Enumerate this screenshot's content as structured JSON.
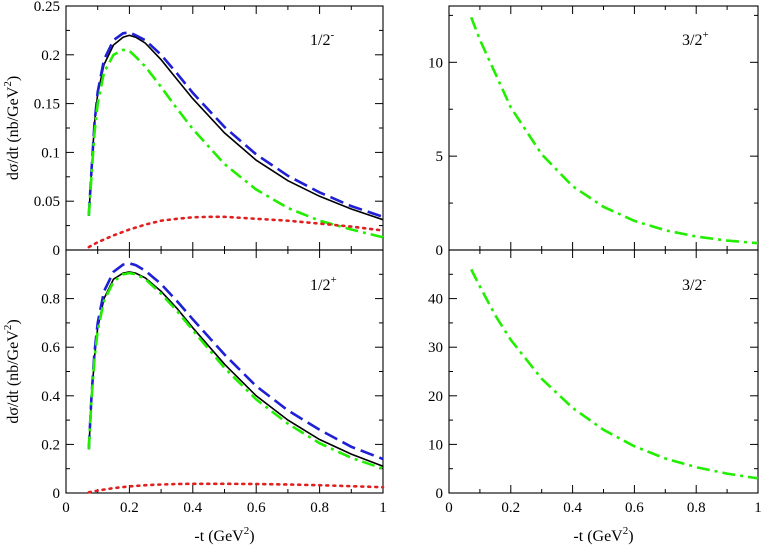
{
  "chart_data": [
    {
      "type": "line",
      "panel_label": "1/2",
      "panel_label_sup": "-",
      "ylabel": "dσ/dt (nb/GeV",
      "ylabel_sup": "2",
      "ylabel_tail": ")",
      "xlim": [
        0,
        1
      ],
      "ylim": [
        0,
        0.25
      ],
      "xticks": [
        0,
        0.2,
        0.4,
        0.6,
        0.8,
        1
      ],
      "xticklabels": [],
      "yticks": [
        0,
        0.05,
        0.1,
        0.15,
        0.2,
        0.25
      ],
      "yticklabels": [
        "0",
        "0.05",
        "0.1",
        "0.15",
        "0.2",
        "0.25"
      ],
      "series": [
        {
          "style": "solid",
          "color": "#000000",
          "x": [
            0.072,
            0.08,
            0.09,
            0.1,
            0.12,
            0.15,
            0.18,
            0.2,
            0.22,
            0.25,
            0.3,
            0.35,
            0.4,
            0.5,
            0.6,
            0.7,
            0.8,
            0.9,
            1.0
          ],
          "y": [
            0.035,
            0.08,
            0.13,
            0.16,
            0.19,
            0.21,
            0.218,
            0.22,
            0.218,
            0.212,
            0.195,
            0.175,
            0.155,
            0.12,
            0.092,
            0.071,
            0.055,
            0.042,
            0.031
          ]
        },
        {
          "style": "dashed",
          "color": "#1f1fd6",
          "x": [
            0.072,
            0.08,
            0.09,
            0.1,
            0.12,
            0.15,
            0.18,
            0.2,
            0.22,
            0.25,
            0.3,
            0.35,
            0.4,
            0.5,
            0.6,
            0.7,
            0.8,
            0.9,
            1.0
          ],
          "y": [
            0.035,
            0.08,
            0.13,
            0.162,
            0.195,
            0.215,
            0.222,
            0.223,
            0.22,
            0.215,
            0.2,
            0.181,
            0.161,
            0.126,
            0.098,
            0.076,
            0.059,
            0.045,
            0.034
          ]
        },
        {
          "style": "dashdot",
          "color": "#22ee00",
          "x": [
            0.072,
            0.08,
            0.09,
            0.1,
            0.12,
            0.15,
            0.18,
            0.2,
            0.22,
            0.25,
            0.3,
            0.35,
            0.4,
            0.5,
            0.6,
            0.7,
            0.8,
            0.9,
            1.0
          ],
          "y": [
            0.035,
            0.075,
            0.12,
            0.15,
            0.182,
            0.2,
            0.205,
            0.204,
            0.198,
            0.188,
            0.167,
            0.145,
            0.124,
            0.088,
            0.062,
            0.043,
            0.03,
            0.021,
            0.013
          ]
        },
        {
          "style": "dotted",
          "color": "#e02020",
          "x": [
            0.072,
            0.1,
            0.15,
            0.2,
            0.25,
            0.3,
            0.35,
            0.4,
            0.45,
            0.5,
            0.55,
            0.6,
            0.7,
            0.8,
            0.9,
            1.0
          ],
          "y": [
            0.003,
            0.008,
            0.015,
            0.021,
            0.026,
            0.03,
            0.032,
            0.0335,
            0.034,
            0.034,
            0.033,
            0.032,
            0.03,
            0.027,
            0.024,
            0.02
          ]
        }
      ]
    },
    {
      "type": "line",
      "panel_label": "3/2",
      "panel_label_sup": "+",
      "xlim": [
        0,
        1
      ],
      "ylim": [
        0,
        13
      ],
      "xticks": [
        0,
        0.2,
        0.4,
        0.6,
        0.8,
        1
      ],
      "xticklabels": [],
      "yticks": [
        0,
        5,
        10
      ],
      "yticklabels": [
        "0",
        "5",
        "10"
      ],
      "series": [
        {
          "style": "dashdot",
          "color": "#22ee00",
          "x": [
            0.072,
            0.1,
            0.2,
            0.3,
            0.4,
            0.5,
            0.6,
            0.7,
            0.8,
            0.9,
            1.0
          ],
          "y": [
            12.4,
            11.2,
            7.6,
            5.1,
            3.4,
            2.3,
            1.55,
            1.05,
            0.72,
            0.5,
            0.36
          ]
        }
      ]
    },
    {
      "type": "line",
      "panel_label": "1/2",
      "panel_label_sup": "+",
      "ylabel": "dσ/dt (nb/GeV",
      "ylabel_sup": "2",
      "ylabel_tail": ")",
      "xlabel": "-t (GeV",
      "xlabel_sup": "2",
      "xlabel_tail": ")",
      "xlim": [
        0,
        1
      ],
      "ylim": [
        0,
        1
      ],
      "xticks": [
        0,
        0.2,
        0.4,
        0.6,
        0.8,
        1
      ],
      "xticklabels": [
        "0",
        "0.2",
        "0.4",
        "0.6",
        "0.8",
        "1"
      ],
      "yticks": [
        0,
        0.2,
        0.4,
        0.6,
        0.8
      ],
      "yticklabels": [
        "0",
        "0.2",
        "0.4",
        "0.6",
        "0.8"
      ],
      "series": [
        {
          "style": "solid",
          "color": "#000000",
          "x": [
            0.072,
            0.08,
            0.09,
            0.1,
            0.12,
            0.15,
            0.18,
            0.2,
            0.22,
            0.25,
            0.3,
            0.35,
            0.4,
            0.5,
            0.6,
            0.7,
            0.8,
            0.9,
            1.0
          ],
          "y": [
            0.18,
            0.38,
            0.56,
            0.68,
            0.8,
            0.88,
            0.905,
            0.91,
            0.905,
            0.885,
            0.83,
            0.76,
            0.68,
            0.53,
            0.4,
            0.3,
            0.22,
            0.16,
            0.11
          ]
        },
        {
          "style": "dashed",
          "color": "#1f1fd6",
          "x": [
            0.072,
            0.08,
            0.09,
            0.1,
            0.12,
            0.15,
            0.18,
            0.2,
            0.22,
            0.25,
            0.3,
            0.35,
            0.4,
            0.5,
            0.6,
            0.7,
            0.8,
            0.9,
            1.0
          ],
          "y": [
            0.18,
            0.39,
            0.58,
            0.7,
            0.83,
            0.91,
            0.94,
            0.945,
            0.938,
            0.915,
            0.86,
            0.79,
            0.715,
            0.57,
            0.44,
            0.34,
            0.26,
            0.19,
            0.14
          ]
        },
        {
          "style": "dashdot",
          "color": "#22ee00",
          "x": [
            0.072,
            0.08,
            0.09,
            0.1,
            0.12,
            0.15,
            0.18,
            0.2,
            0.22,
            0.25,
            0.3,
            0.35,
            0.4,
            0.5,
            0.6,
            0.7,
            0.8,
            0.9,
            1.0
          ],
          "y": [
            0.18,
            0.38,
            0.55,
            0.67,
            0.79,
            0.87,
            0.9,
            0.905,
            0.9,
            0.88,
            0.82,
            0.75,
            0.67,
            0.515,
            0.385,
            0.285,
            0.205,
            0.145,
            0.1
          ]
        },
        {
          "style": "dotted",
          "color": "#e02020",
          "x": [
            0.072,
            0.1,
            0.15,
            0.2,
            0.25,
            0.3,
            0.35,
            0.4,
            0.5,
            0.6,
            0.7,
            0.8,
            0.9,
            1.0
          ],
          "y": [
            0.003,
            0.01,
            0.02,
            0.027,
            0.032,
            0.035,
            0.037,
            0.038,
            0.038,
            0.037,
            0.035,
            0.032,
            0.028,
            0.024
          ]
        }
      ]
    },
    {
      "type": "line",
      "panel_label": "3/2",
      "panel_label_sup": "-",
      "xlabel": "-t (GeV",
      "xlabel_sup": "2",
      "xlabel_tail": ")",
      "xlim": [
        0,
        1
      ],
      "ylim": [
        0,
        50
      ],
      "xticks": [
        0,
        0.2,
        0.4,
        0.6,
        0.8,
        1
      ],
      "xticklabels": [
        "0",
        "0.2",
        "0.4",
        "0.6",
        "0.8",
        "1"
      ],
      "yticks": [
        0,
        10,
        20,
        30,
        40
      ],
      "yticklabels": [
        "0",
        "10",
        "20",
        "30",
        "40"
      ],
      "series": [
        {
          "style": "dashdot",
          "color": "#22ee00",
          "x": [
            0.072,
            0.1,
            0.15,
            0.2,
            0.3,
            0.4,
            0.5,
            0.6,
            0.7,
            0.8,
            0.9,
            1.0
          ],
          "y": [
            46,
            42.5,
            36.5,
            31.5,
            23.5,
            17.5,
            13,
            9.6,
            7.1,
            5.3,
            4,
            3
          ]
        }
      ]
    }
  ]
}
